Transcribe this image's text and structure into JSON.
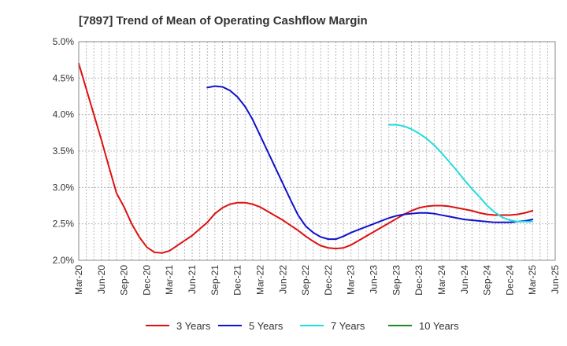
{
  "chart_data": {
    "type": "line",
    "title": "[7897]  Trend of Mean of Operating Cashflow Margin",
    "xlabel": "",
    "ylabel": "",
    "y_ticks": [
      "5.0%",
      "4.5%",
      "4.0%",
      "3.5%",
      "3.0%",
      "2.5%",
      "2.0%"
    ],
    "ylim": [
      2.0,
      5.0
    ],
    "x_ticks": [
      "Mar-20",
      "Jun-20",
      "Sep-20",
      "Dec-20",
      "Mar-21",
      "Jun-21",
      "Sep-21",
      "Dec-21",
      "Mar-22",
      "Jun-22",
      "Sep-22",
      "Dec-22",
      "Mar-23",
      "Jun-23",
      "Sep-23",
      "Dec-23",
      "Mar-24",
      "Jun-24",
      "Sep-24",
      "Dec-24",
      "Mar-25",
      "Jun-25"
    ],
    "grid": true,
    "legend_placement": "bottom",
    "series": [
      {
        "name": "3 Years",
        "color": "#dd1111",
        "values": [
          [
            "Mar-20",
            4.7
          ],
          [
            "Apr-20",
            4.35
          ],
          [
            "May-20",
            4.0
          ],
          [
            "Jun-20",
            3.65
          ],
          [
            "Jul-20",
            3.28
          ],
          [
            "Aug-20",
            2.92
          ],
          [
            "Sep-20",
            2.73
          ],
          [
            "Oct-20",
            2.5
          ],
          [
            "Nov-20",
            2.32
          ],
          [
            "Dec-20",
            2.18
          ],
          [
            "Jan-21",
            2.11
          ],
          [
            "Feb-21",
            2.1
          ],
          [
            "Mar-21",
            2.13
          ],
          [
            "Apr-21",
            2.2
          ],
          [
            "May-21",
            2.27
          ],
          [
            "Jun-21",
            2.34
          ],
          [
            "Jul-21",
            2.43
          ],
          [
            "Aug-21",
            2.52
          ],
          [
            "Sep-21",
            2.64
          ],
          [
            "Oct-21",
            2.72
          ],
          [
            "Nov-21",
            2.77
          ],
          [
            "Dec-21",
            2.79
          ],
          [
            "Jan-22",
            2.79
          ],
          [
            "Feb-22",
            2.77
          ],
          [
            "Mar-22",
            2.73
          ],
          [
            "Apr-22",
            2.67
          ],
          [
            "May-22",
            2.61
          ],
          [
            "Jun-22",
            2.55
          ],
          [
            "Jul-22",
            2.48
          ],
          [
            "Aug-22",
            2.41
          ],
          [
            "Sep-22",
            2.33
          ],
          [
            "Oct-22",
            2.26
          ],
          [
            "Nov-22",
            2.2
          ],
          [
            "Dec-22",
            2.17
          ],
          [
            "Jan-23",
            2.16
          ],
          [
            "Feb-23",
            2.17
          ],
          [
            "Mar-23",
            2.21
          ],
          [
            "Apr-23",
            2.27
          ],
          [
            "May-23",
            2.33
          ],
          [
            "Jun-23",
            2.39
          ],
          [
            "Jul-23",
            2.45
          ],
          [
            "Aug-23",
            2.51
          ],
          [
            "Sep-23",
            2.57
          ],
          [
            "Oct-23",
            2.63
          ],
          [
            "Nov-23",
            2.68
          ],
          [
            "Dec-23",
            2.72
          ],
          [
            "Jan-24",
            2.74
          ],
          [
            "Feb-24",
            2.75
          ],
          [
            "Mar-24",
            2.75
          ],
          [
            "Apr-24",
            2.74
          ],
          [
            "May-24",
            2.72
          ],
          [
            "Jun-24",
            2.7
          ],
          [
            "Jul-24",
            2.68
          ],
          [
            "Aug-24",
            2.65
          ],
          [
            "Sep-24",
            2.63
          ],
          [
            "Oct-24",
            2.62
          ],
          [
            "Nov-24",
            2.62
          ],
          [
            "Dec-24",
            2.62
          ],
          [
            "Jan-25",
            2.63
          ],
          [
            "Feb-25",
            2.65
          ],
          [
            "Mar-25",
            2.68
          ]
        ]
      },
      {
        "name": "5 Years",
        "color": "#1111cc",
        "values": [
          [
            "Aug-21",
            4.37
          ],
          [
            "Sep-21",
            4.39
          ],
          [
            "Oct-21",
            4.38
          ],
          [
            "Nov-21",
            4.33
          ],
          [
            "Dec-21",
            4.24
          ],
          [
            "Jan-22",
            4.11
          ],
          [
            "Feb-22",
            3.93
          ],
          [
            "Mar-22",
            3.71
          ],
          [
            "Apr-22",
            3.49
          ],
          [
            "May-22",
            3.27
          ],
          [
            "Jun-22",
            3.05
          ],
          [
            "Jul-22",
            2.83
          ],
          [
            "Aug-22",
            2.62
          ],
          [
            "Sep-22",
            2.47
          ],
          [
            "Oct-22",
            2.38
          ],
          [
            "Nov-22",
            2.32
          ],
          [
            "Dec-22",
            2.29
          ],
          [
            "Jan-23",
            2.29
          ],
          [
            "Feb-23",
            2.33
          ],
          [
            "Mar-23",
            2.38
          ],
          [
            "Apr-23",
            2.42
          ],
          [
            "May-23",
            2.46
          ],
          [
            "Jun-23",
            2.5
          ],
          [
            "Jul-23",
            2.54
          ],
          [
            "Aug-23",
            2.58
          ],
          [
            "Sep-23",
            2.61
          ],
          [
            "Oct-23",
            2.63
          ],
          [
            "Nov-23",
            2.64
          ],
          [
            "Dec-23",
            2.65
          ],
          [
            "Jan-24",
            2.65
          ],
          [
            "Feb-24",
            2.64
          ],
          [
            "Mar-24",
            2.62
          ],
          [
            "Apr-24",
            2.6
          ],
          [
            "May-24",
            2.58
          ],
          [
            "Jun-24",
            2.56
          ],
          [
            "Jul-24",
            2.55
          ],
          [
            "Aug-24",
            2.54
          ],
          [
            "Sep-24",
            2.53
          ],
          [
            "Oct-24",
            2.52
          ],
          [
            "Nov-24",
            2.52
          ],
          [
            "Dec-24",
            2.52
          ],
          [
            "Jan-25",
            2.53
          ],
          [
            "Feb-25",
            2.54
          ],
          [
            "Mar-25",
            2.56
          ]
        ]
      },
      {
        "name": "7 Years",
        "color": "#22dddd",
        "values": [
          [
            "Aug-23",
            3.86
          ],
          [
            "Sep-23",
            3.86
          ],
          [
            "Oct-23",
            3.84
          ],
          [
            "Nov-23",
            3.8
          ],
          [
            "Dec-23",
            3.74
          ],
          [
            "Jan-24",
            3.67
          ],
          [
            "Feb-24",
            3.58
          ],
          [
            "Mar-24",
            3.47
          ],
          [
            "Apr-24",
            3.35
          ],
          [
            "May-24",
            3.23
          ],
          [
            "Jun-24",
            3.1
          ],
          [
            "Jul-24",
            2.98
          ],
          [
            "Aug-24",
            2.87
          ],
          [
            "Sep-24",
            2.75
          ],
          [
            "Oct-24",
            2.66
          ],
          [
            "Nov-24",
            2.59
          ],
          [
            "Dec-24",
            2.55
          ],
          [
            "Jan-25",
            2.53
          ],
          [
            "Feb-25",
            2.53
          ],
          [
            "Mar-25",
            2.53
          ]
        ]
      },
      {
        "name": "10 Years",
        "color": "#228822",
        "values": []
      }
    ]
  }
}
